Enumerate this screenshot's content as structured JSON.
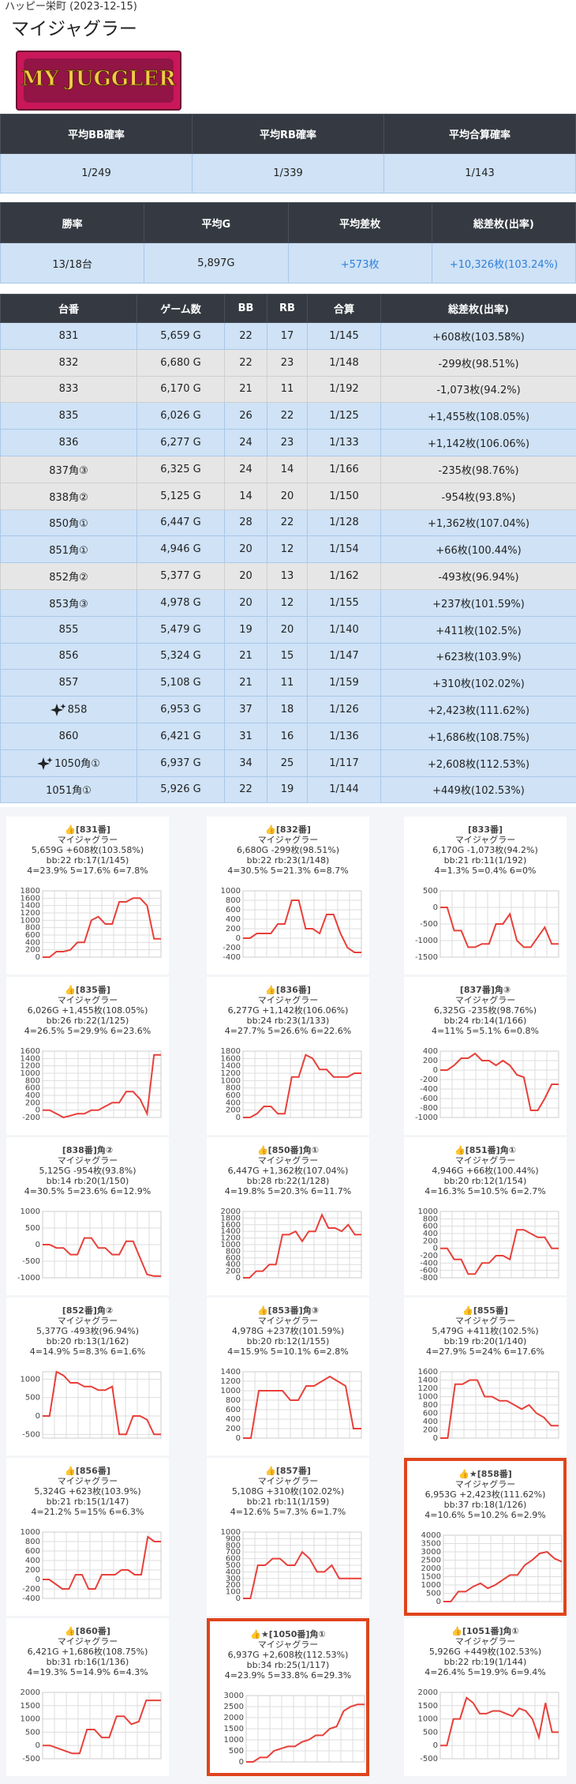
{
  "header": {
    "venue": "ハッピー栄町 (2023-12-15)",
    "title": "マイジャグラー",
    "logo_text": "MY JUGGLER"
  },
  "summary1": {
    "headers": [
      "平均BB確率",
      "平均RB確率",
      "平均合算確率"
    ],
    "row": [
      "1/249",
      "1/339",
      "1/143"
    ]
  },
  "summary2": {
    "headers": [
      "勝率",
      "平均G",
      "平均差枚",
      "総差枚(出率)"
    ],
    "row": [
      "13/18台",
      "5,897G",
      "+573枚",
      "+10,326枚(103.24%)"
    ]
  },
  "machines": {
    "headers": [
      "台番",
      "ゲーム数",
      "BB",
      "RB",
      "合算",
      "総差枚(出率)"
    ],
    "rows": [
      [
        "831",
        "5,659 G",
        "22",
        "17",
        "1/145",
        "+608枚(103.58%)"
      ],
      [
        "832",
        "6,680 G",
        "22",
        "23",
        "1/148",
        "-299枚(98.51%)"
      ],
      [
        "833",
        "6,170 G",
        "21",
        "11",
        "1/192",
        "-1,073枚(94.2%)"
      ],
      [
        "835",
        "6,026 G",
        "26",
        "22",
        "1/125",
        "+1,455枚(108.05%)"
      ],
      [
        "836",
        "6,277 G",
        "24",
        "23",
        "1/133",
        "+1,142枚(106.06%)"
      ],
      [
        "837角③",
        "6,325 G",
        "24",
        "14",
        "1/166",
        "-235枚(98.76%)"
      ],
      [
        "838角②",
        "5,125 G",
        "14",
        "20",
        "1/150",
        "-954枚(93.8%)"
      ],
      [
        "850角①",
        "6,447 G",
        "28",
        "22",
        "1/128",
        "+1,362枚(107.04%)"
      ],
      [
        "851角①",
        "4,946 G",
        "20",
        "12",
        "1/154",
        "+66枚(100.44%)"
      ],
      [
        "852角②",
        "5,377 G",
        "20",
        "13",
        "1/162",
        "-493枚(96.94%)"
      ],
      [
        "853角③",
        "4,978 G",
        "20",
        "12",
        "1/155",
        "+237枚(101.59%)"
      ],
      [
        "855",
        "5,479 G",
        "19",
        "20",
        "1/140",
        "+411枚(102.5%)"
      ],
      [
        "856",
        "5,324 G",
        "21",
        "15",
        "1/147",
        "+623枚(103.9%)"
      ],
      [
        "857",
        "5,108 G",
        "21",
        "11",
        "1/159",
        "+310枚(102.02%)"
      ],
      [
        "858",
        "6,953 G",
        "37",
        "18",
        "1/126",
        "+2,423枚(111.62%)"
      ],
      [
        "860",
        "6,421 G",
        "31",
        "16",
        "1/136",
        "+1,686枚(108.75%)"
      ],
      [
        "1050角①",
        "6,937 G",
        "34",
        "25",
        "1/117",
        "+2,608枚(112.53%)"
      ],
      [
        "1051角①",
        "5,926 G",
        "22",
        "19",
        "1/144",
        "+449枚(102.53%)"
      ]
    ]
  },
  "charts": [
    {
      "title": "👍[831番]",
      "name": "マイジャグラー",
      "lines": [
        "5,659G +608枚(103.58%)",
        "bb:22 rb:17(1/145)",
        "4=23.9% 5=17.6% 6=7.8%"
      ],
      "ylim": [
        0,
        1800
      ],
      "yticks": [
        0,
        200,
        400,
        600,
        800,
        1000,
        1200,
        1400,
        1600,
        1800
      ],
      "values": [
        0,
        0,
        150,
        150,
        200,
        400,
        400,
        1000,
        1100,
        900,
        900,
        1500,
        1500,
        1600,
        1600,
        1400,
        500,
        500
      ],
      "color": "#e8403a"
    },
    {
      "title": "👍[832番]",
      "name": "マイジャグラー",
      "lines": [
        "6,680G -299枚(98.51%)",
        "bb:22 rb:23(1/148)",
        "4=30.5% 5=21.3% 6=8.7%"
      ],
      "ylim": [
        -400,
        1000
      ],
      "yticks": [
        -400,
        -200,
        0,
        200,
        400,
        600,
        800,
        1000
      ],
      "values": [
        0,
        0,
        100,
        100,
        100,
        300,
        300,
        800,
        800,
        200,
        200,
        100,
        500,
        500,
        100,
        -200,
        -300,
        -300
      ],
      "color": "#e8403a"
    },
    {
      "title": "[833番]",
      "name": "マイジャグラー",
      "lines": [
        "6,170G -1,073枚(94.2%)",
        "bb:21 rb:11(1/192)",
        "4=1.3% 5=0.4% 6=0%"
      ],
      "ylim": [
        -1500,
        500
      ],
      "yticks": [
        -1500,
        -1000,
        -500,
        0,
        500
      ],
      "values": [
        0,
        0,
        -700,
        -700,
        -1200,
        -1200,
        -1100,
        -1100,
        -500,
        -500,
        -200,
        -1000,
        -1200,
        -1200,
        -900,
        -600,
        -1100,
        -1100
      ],
      "color": "#e8403a"
    },
    {
      "title": "👍[835番]",
      "name": "マイジャグラー",
      "lines": [
        "6,026G +1,455枚(108.05%)",
        "bb:26 rb:22(1/125)",
        "4=26.5% 5=29.9% 6=23.6%"
      ],
      "ylim": [
        -200,
        1600
      ],
      "yticks": [
        -200,
        0,
        200,
        400,
        600,
        800,
        1000,
        1200,
        1400,
        1600
      ],
      "values": [
        0,
        0,
        -100,
        -200,
        -150,
        -100,
        -100,
        0,
        0,
        100,
        200,
        200,
        500,
        500,
        300,
        -100,
        1500,
        1500
      ],
      "color": "#e8403a"
    },
    {
      "title": "👍[836番]",
      "name": "マイジャグラー",
      "lines": [
        "6,277G +1,142枚(106.06%)",
        "bb:24 rb:23(1/133)",
        "4=27.7% 5=26.6% 6=22.6%"
      ],
      "ylim": [
        0,
        1800
      ],
      "yticks": [
        0,
        200,
        400,
        600,
        800,
        1000,
        1200,
        1400,
        1600,
        1800
      ],
      "values": [
        0,
        0,
        100,
        300,
        300,
        100,
        100,
        1100,
        1100,
        1700,
        1600,
        1300,
        1300,
        1100,
        1100,
        1100,
        1200,
        1200
      ],
      "color": "#e8403a"
    },
    {
      "title": "[837番]角③",
      "name": "マイジャグラー",
      "lines": [
        "6,325G -235枚(98.76%)",
        "bb:24 rb:14(1/166)",
        "4=11% 5=5.1% 6=0.8%"
      ],
      "ylim": [
        -1000,
        400
      ],
      "yticks": [
        -1000,
        -800,
        -600,
        -400,
        -200,
        0,
        200,
        400
      ],
      "values": [
        0,
        0,
        100,
        250,
        250,
        350,
        200,
        200,
        100,
        200,
        100,
        -100,
        -150,
        -850,
        -850,
        -600,
        -300,
        -300
      ],
      "color": "#e8403a"
    },
    {
      "title": "[838番]角②",
      "name": "マイジャグラー",
      "lines": [
        "5,125G -954枚(93.8%)",
        "bb:14 rb:20(1/150)",
        "4=30.5% 5=23.6% 6=12.9%"
      ],
      "ylim": [
        -1000,
        1000
      ],
      "yticks": [
        -1000,
        -500,
        0,
        500,
        1000
      ],
      "values": [
        0,
        0,
        -100,
        -100,
        -300,
        -300,
        200,
        200,
        -100,
        -100,
        -300,
        -300,
        100,
        100,
        -400,
        -900,
        -950,
        -950
      ],
      "color": "#e8403a"
    },
    {
      "title": "👍[850番]角①",
      "name": "マイジャグラー",
      "lines": [
        "6,447G +1,362枚(107.04%)",
        "bb:28 rb:22(1/128)",
        "4=19.8% 5=20.3% 6=11.7%"
      ],
      "ylim": [
        0,
        2000
      ],
      "yticks": [
        0,
        200,
        400,
        600,
        800,
        1000,
        1200,
        1400,
        1600,
        1800,
        2000
      ],
      "values": [
        0,
        0,
        200,
        200,
        400,
        400,
        1300,
        1300,
        1400,
        1100,
        1400,
        1400,
        1900,
        1500,
        1500,
        1400,
        1600,
        1300,
        1300
      ],
      "color": "#e8403a"
    },
    {
      "title": "👍[851番]角①",
      "name": "マイジャグラー",
      "lines": [
        "4,946G +66枚(100.44%)",
        "bb:20 rb:12(1/154)",
        "4=16.3% 5=10.5% 6=2.7%"
      ],
      "ylim": [
        -800,
        1000
      ],
      "yticks": [
        -800,
        -600,
        -400,
        -200,
        0,
        200,
        400,
        600,
        800,
        1000
      ],
      "values": [
        0,
        0,
        -300,
        -300,
        -700,
        -700,
        -400,
        -400,
        -200,
        -200,
        -300,
        500,
        500,
        400,
        300,
        300,
        0,
        0
      ],
      "color": "#e8403a"
    },
    {
      "title": "[852番]角②",
      "name": "マイジャグラー",
      "lines": [
        "5,377G -493枚(96.94%)",
        "bb:20 rb:13(1/162)",
        "4=14.9% 5=8.3% 6=1.6%"
      ],
      "ylim": [
        -600,
        1200
      ],
      "yticks": [
        -500,
        0,
        500,
        1000
      ],
      "values": [
        0,
        0,
        1200,
        1100,
        900,
        900,
        800,
        800,
        700,
        700,
        800,
        -500,
        -500,
        0,
        0,
        -100,
        -500,
        -500
      ],
      "color": "#e8403a"
    },
    {
      "title": "👍[853番]角③",
      "name": "マイジャグラー",
      "lines": [
        "4,978G +237枚(101.59%)",
        "bb:20 rb:12(1/155)",
        "4=15.9% 5=10.1% 6=2.8%"
      ],
      "ylim": [
        0,
        1400
      ],
      "yticks": [
        0,
        200,
        400,
        600,
        800,
        1000,
        1200,
        1400
      ],
      "values": [
        0,
        0,
        1000,
        1000,
        1000,
        1000,
        800,
        800,
        1100,
        1100,
        1200,
        1300,
        1200,
        1100,
        200,
        200
      ],
      "color": "#e8403a"
    },
    {
      "title": "👍[855番]",
      "name": "マイジャグラー",
      "lines": [
        "5,479G +411枚(102.5%)",
        "bb:19 rb:20(1/140)",
        "4=27.9% 5=24% 6=17.6%"
      ],
      "ylim": [
        0,
        1600
      ],
      "yticks": [
        0,
        200,
        400,
        600,
        800,
        1000,
        1200,
        1400,
        1600
      ],
      "values": [
        0,
        0,
        1300,
        1300,
        1400,
        1400,
        1000,
        1000,
        900,
        900,
        800,
        700,
        800,
        600,
        500,
        300,
        300
      ],
      "color": "#e8403a"
    },
    {
      "title": "👍[856番]",
      "name": "マイジャグラー",
      "lines": [
        "5,324G +623枚(103.9%)",
        "bb:21 rb:15(1/147)",
        "4=21.2% 5=15% 6=6.3%"
      ],
      "ylim": [
        -400,
        1000
      ],
      "yticks": [
        -400,
        -200,
        0,
        200,
        400,
        600,
        800,
        1000
      ],
      "values": [
        0,
        0,
        -100,
        -200,
        -200,
        100,
        100,
        -200,
        -200,
        100,
        100,
        100,
        200,
        200,
        100,
        100,
        900,
        800,
        800
      ],
      "color": "#e8403a"
    },
    {
      "title": "👍[857番]",
      "name": "マイジャグラー",
      "lines": [
        "5,108G +310枚(102.02%)",
        "bb:21 rb:11(1/159)",
        "4=12.6% 5=7.3% 6=1.7%"
      ],
      "ylim": [
        0,
        1000
      ],
      "yticks": [
        0,
        100,
        200,
        300,
        400,
        500,
        600,
        700,
        800,
        900,
        1000
      ],
      "values": [
        0,
        0,
        500,
        500,
        600,
        600,
        500,
        500,
        700,
        600,
        400,
        400,
        500,
        300,
        300,
        300,
        300
      ],
      "color": "#e8403a"
    },
    {
      "title": "👍★[858番]",
      "name": "マイジャグラー",
      "lines": [
        "6,953G +2,423枚(111.62%)",
        "bb:37 rb:18(1/126)",
        "4=10.6% 5=10.2% 6=2.9%"
      ],
      "ylim": [
        0,
        4000
      ],
      "yticks": [
        0,
        500,
        1000,
        1500,
        2000,
        2500,
        3000,
        3500,
        4000
      ],
      "values": [
        0,
        0,
        600,
        600,
        900,
        1100,
        800,
        1000,
        1300,
        1600,
        1600,
        2200,
        2500,
        2900,
        3000,
        2600,
        2400
      ],
      "color": "#e8403a"
    },
    {
      "title": "👍[860番]",
      "name": "マイジャグラー",
      "lines": [
        "6,421G +1,686枚(108.75%)",
        "bb:31 rb:16(1/136)",
        "4=19.3% 5=14.9% 6=4.3%"
      ],
      "ylim": [
        -500,
        2000
      ],
      "yticks": [
        -500,
        0,
        500,
        1000,
        1500,
        2000
      ],
      "values": [
        0,
        0,
        -100,
        -200,
        -300,
        -300,
        600,
        600,
        300,
        300,
        1100,
        1100,
        800,
        900,
        1700,
        1700,
        1700
      ],
      "color": "#e8403a"
    },
    {
      "title": "👍★[1050番]角①",
      "name": "マイジャグラー",
      "lines": [
        "6,937G +2,608枚(112.53%)",
        "bb:34 rb:25(1/117)",
        "4=23.9% 5=33.8% 6=29.3%"
      ],
      "ylim": [
        0,
        3000
      ],
      "yticks": [
        0,
        500,
        1000,
        1500,
        2000,
        2500,
        3000
      ],
      "values": [
        0,
        0,
        200,
        200,
        500,
        600,
        700,
        700,
        900,
        1000,
        1200,
        1200,
        1500,
        1600,
        2300,
        2500,
        2600,
        2600
      ],
      "color": "#e8403a"
    },
    {
      "title": "👍[1051番]角①",
      "name": "マイジャグラー",
      "lines": [
        "5,926G +449枚(102.53%)",
        "bb:22 rb:19(1/144)",
        "4=26.4% 5=19.9% 6=9.4%"
      ],
      "ylim": [
        -500,
        2000
      ],
      "yticks": [
        -500,
        0,
        500,
        1000,
        1500,
        2000
      ],
      "values": [
        0,
        0,
        1000,
        1000,
        1800,
        1600,
        1200,
        1200,
        1300,
        1300,
        1200,
        1100,
        1400,
        1300,
        1000,
        300,
        1600,
        500,
        500
      ],
      "color": "#e8403a"
    }
  ]
}
